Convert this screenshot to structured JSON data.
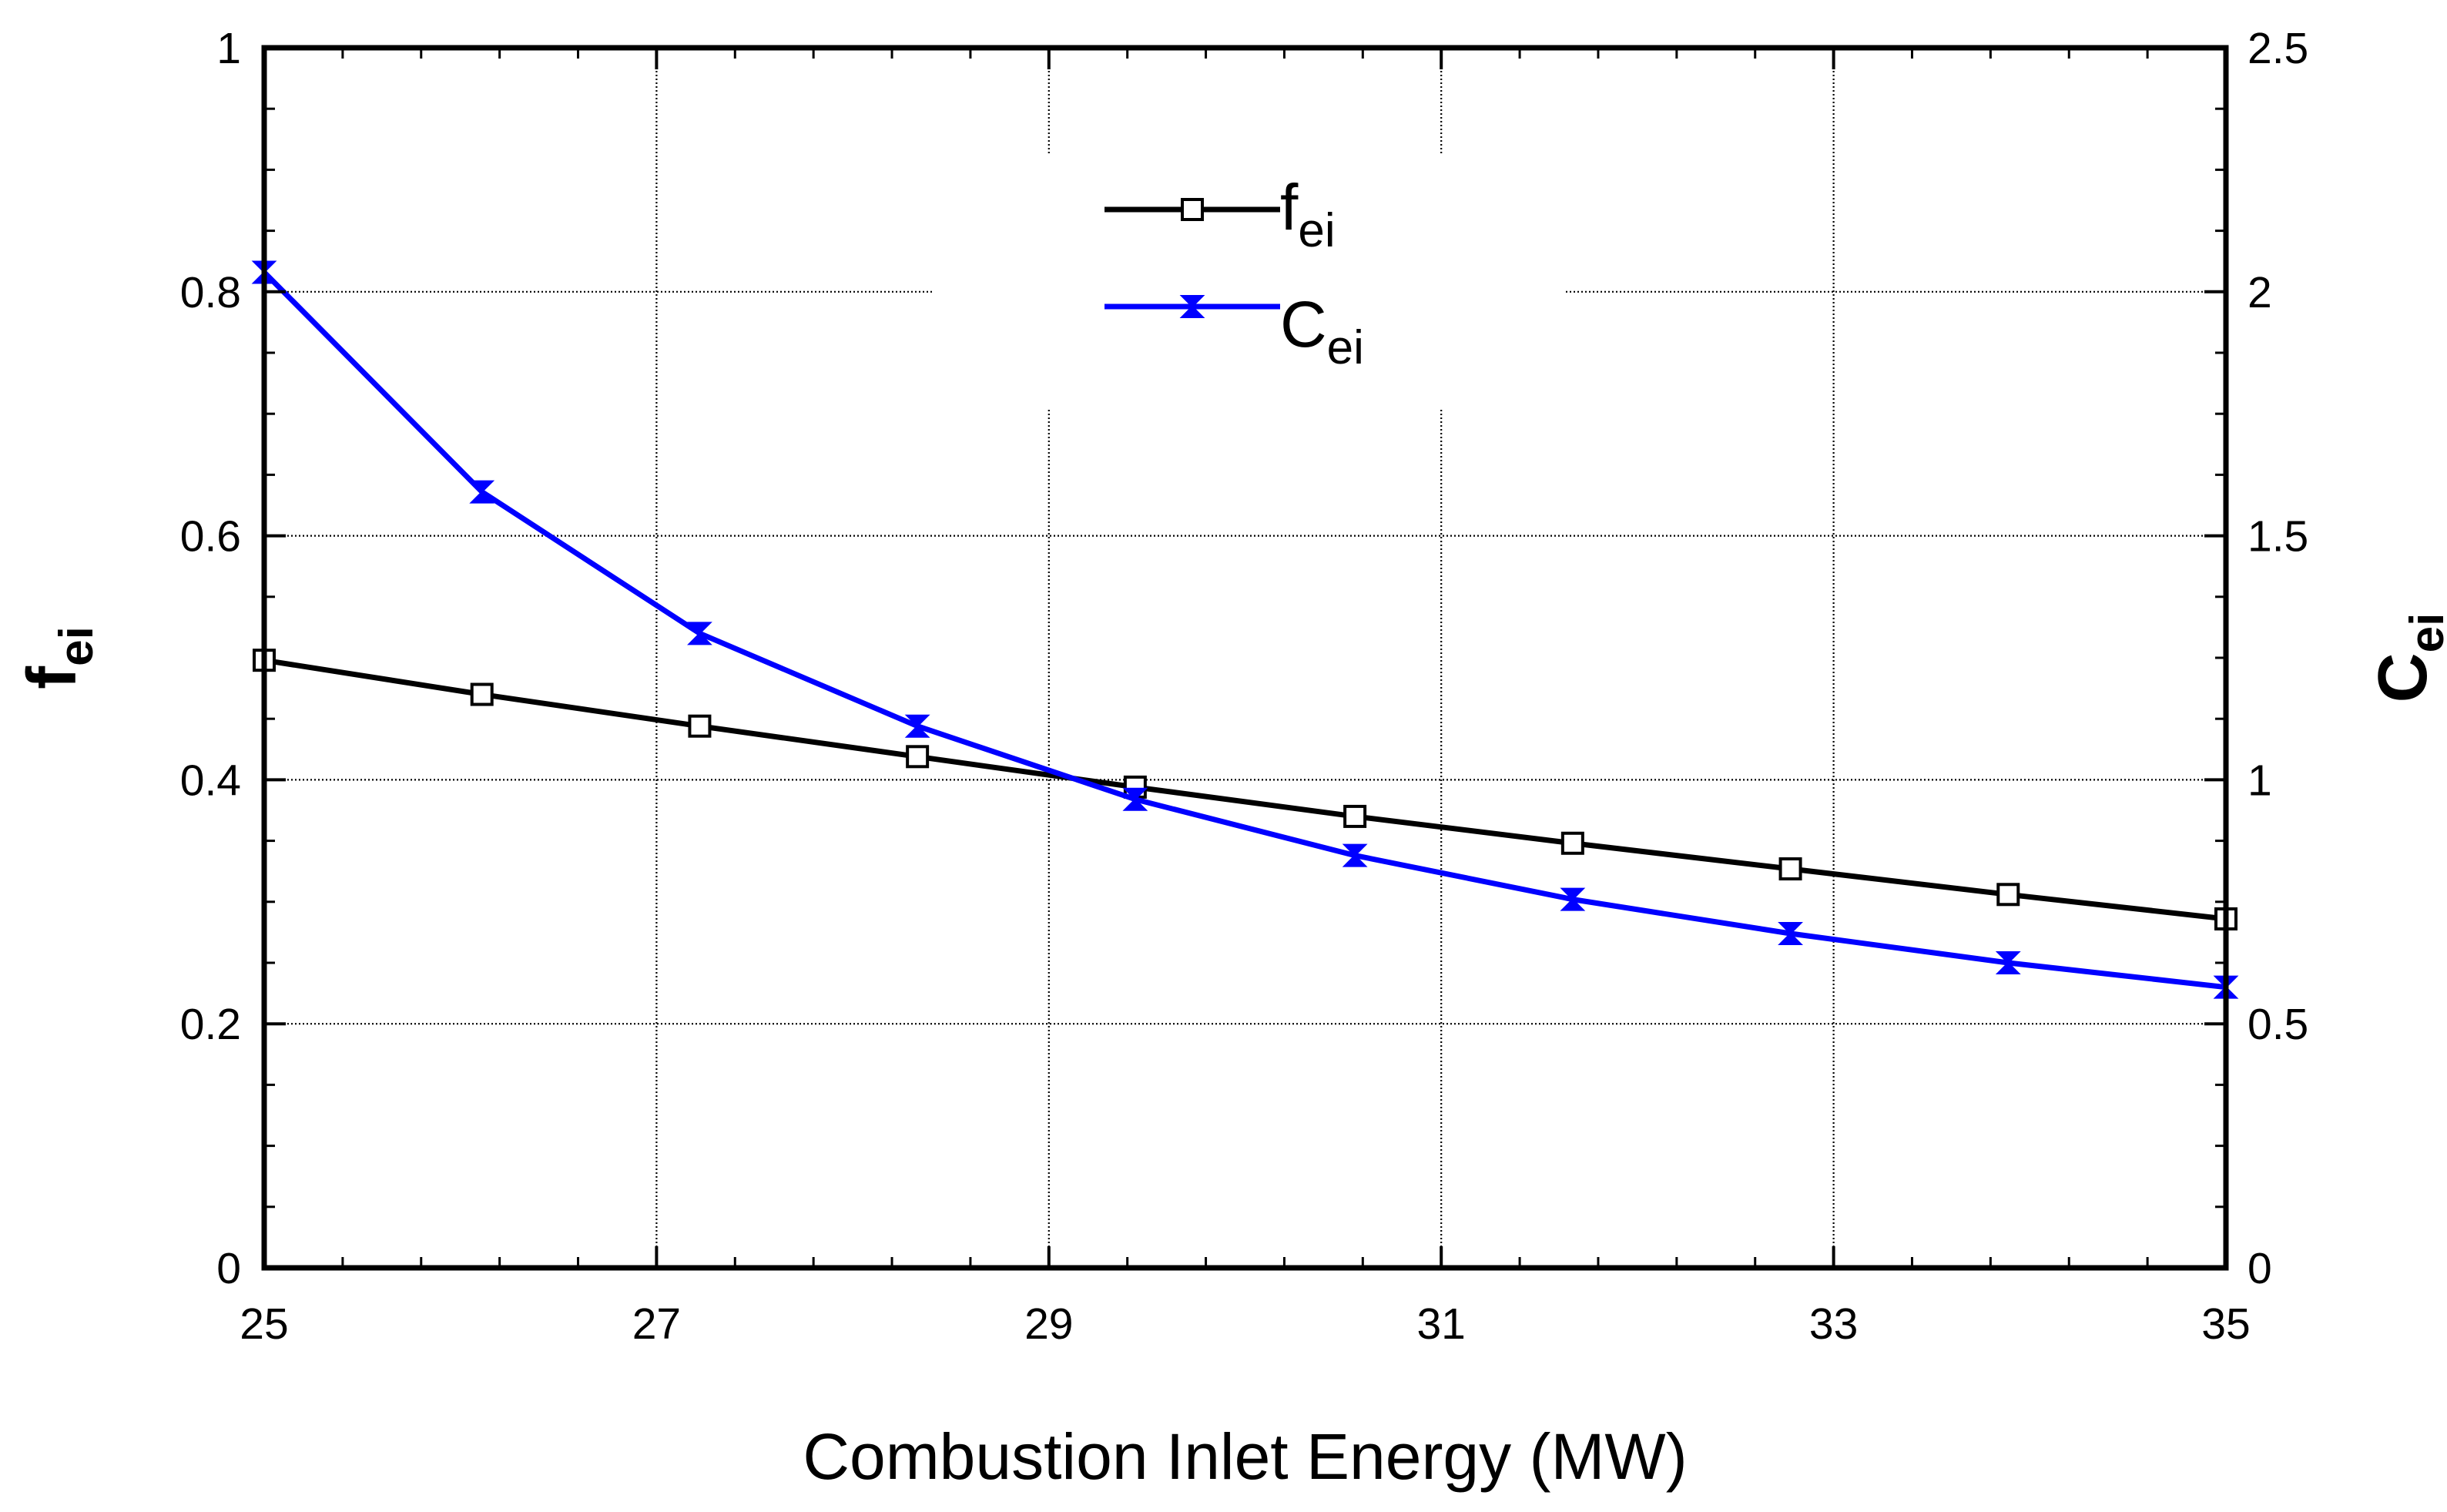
{
  "chart_data": {
    "type": "line",
    "title": "",
    "xlabel": "Combustion Inlet Energy (MW)",
    "ylabel_left": {
      "base": "f",
      "sub": "ei"
    },
    "ylabel_right": {
      "base": "C",
      "sub": "ei"
    },
    "xlim": [
      25,
      35
    ],
    "ylim_left": [
      0,
      1
    ],
    "ylim_right": [
      0,
      2.5
    ],
    "x_ticks": [
      "25",
      "27",
      "29",
      "31",
      "33",
      "35"
    ],
    "y_left_ticks": [
      "0",
      "0.2",
      "0.4",
      "0.6",
      "0.8",
      "1"
    ],
    "y_right_ticks": [
      "0",
      "0.5",
      "1",
      "1.5",
      "2",
      "2.5"
    ],
    "grid": true,
    "legend_position": "top-center",
    "series": [
      {
        "name": "f_ei",
        "label": {
          "base": "f",
          "sub": "ei"
        },
        "axis": "left",
        "color": "#000000",
        "marker": "open-square",
        "x": [
          25,
          26.11,
          27.22,
          28.33,
          29.44,
          30.56,
          31.67,
          32.78,
          33.89,
          35
        ],
        "y": [
          0.498,
          0.47,
          0.444,
          0.419,
          0.394,
          0.37,
          0.348,
          0.327,
          0.306,
          0.286
        ]
      },
      {
        "name": "C_ei",
        "label": {
          "base": "C",
          "sub": "ei"
        },
        "axis": "right",
        "color": "#0000ff",
        "marker": "bowtie",
        "x": [
          25,
          26.11,
          27.22,
          28.33,
          29.44,
          30.56,
          31.67,
          32.78,
          33.89,
          35
        ],
        "y": [
          2.04,
          1.59,
          1.3,
          1.11,
          0.96,
          0.845,
          0.755,
          0.685,
          0.625,
          0.575
        ]
      }
    ]
  }
}
